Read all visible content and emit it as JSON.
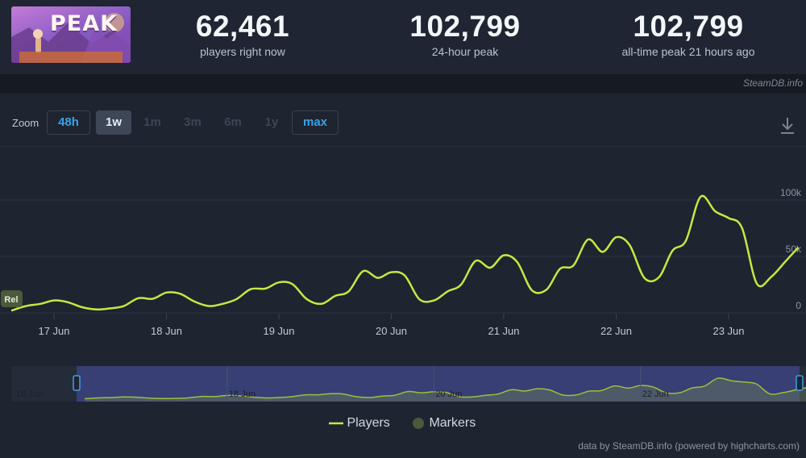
{
  "app": {
    "logo_text": "PEAK"
  },
  "stats": [
    {
      "value": "62,461",
      "label": "players right now"
    },
    {
      "value": "102,799",
      "label": "24-hour peak"
    },
    {
      "value": "102,799",
      "label": "all-time peak 21 hours ago"
    }
  ],
  "credit_top": "SteamDB.info",
  "zoom": {
    "label": "Zoom",
    "options": [
      {
        "label": "48h",
        "state": "link"
      },
      {
        "label": "1w",
        "state": "active"
      },
      {
        "label": "1m",
        "state": "dim"
      },
      {
        "label": "3m",
        "state": "dim"
      },
      {
        "label": "6m",
        "state": "dim"
      },
      {
        "label": "1y",
        "state": "dim"
      },
      {
        "label": "max",
        "state": "link"
      }
    ]
  },
  "icons": {
    "download": "download-icon"
  },
  "colors": {
    "series": "#c5e842",
    "marker": "#4a5a3a",
    "link": "#3aa2e6",
    "navigator_fill": "#3b4380"
  },
  "chart_data": {
    "type": "line",
    "title": "",
    "xlabel": "",
    "ylabel": "",
    "x_ticks": [
      "17 Jun",
      "18 Jun",
      "19 Jun",
      "20 Jun",
      "21 Jun",
      "22 Jun",
      "23 Jun"
    ],
    "y_ticks": [
      "0",
      "50k",
      "100k"
    ],
    "ylim": [
      0,
      100000
    ],
    "grid": true,
    "series": [
      {
        "name": "Players",
        "x": [
          16.62,
          16.75,
          16.88,
          17.0,
          17.12,
          17.25,
          17.38,
          17.5,
          17.62,
          17.75,
          17.88,
          18.0,
          18.12,
          18.25,
          18.38,
          18.5,
          18.62,
          18.75,
          18.88,
          19.0,
          19.12,
          19.25,
          19.38,
          19.5,
          19.62,
          19.75,
          19.88,
          20.0,
          20.12,
          20.25,
          20.38,
          20.5,
          20.62,
          20.75,
          20.88,
          21.0,
          21.12,
          21.25,
          21.38,
          21.5,
          21.62,
          21.75,
          21.88,
          22.0,
          22.12,
          22.25,
          22.38,
          22.5,
          22.62,
          22.75,
          22.88,
          23.0,
          23.12,
          23.25,
          23.38,
          23.5,
          23.62
        ],
        "values": [
          2000,
          6000,
          8000,
          11000,
          9500,
          5000,
          3000,
          4000,
          6000,
          13000,
          12500,
          18000,
          17000,
          10000,
          6000,
          8000,
          12000,
          21000,
          21500,
          27000,
          25500,
          12000,
          8000,
          15000,
          19000,
          37000,
          31000,
          36000,
          33000,
          12000,
          11000,
          19000,
          25000,
          46000,
          40000,
          51000,
          45000,
          20000,
          20500,
          39000,
          42000,
          65000,
          54000,
          67000,
          60000,
          31000,
          31500,
          55000,
          64000,
          102799,
          90000,
          84000,
          75000,
          26000,
          32000,
          45000,
          58000
        ]
      }
    ],
    "markers": [
      {
        "label": "Rel",
        "x": 16.62
      }
    ],
    "legend": [
      "Players",
      "Markers"
    ],
    "legend_position": "bottom-center",
    "navigator": {
      "ticks": [
        "16 Jun",
        "18 Jun",
        "20 Jun",
        "22 Jun"
      ]
    }
  },
  "credit_bottom": "data by SteamDB.info (powered by highcharts.com)"
}
